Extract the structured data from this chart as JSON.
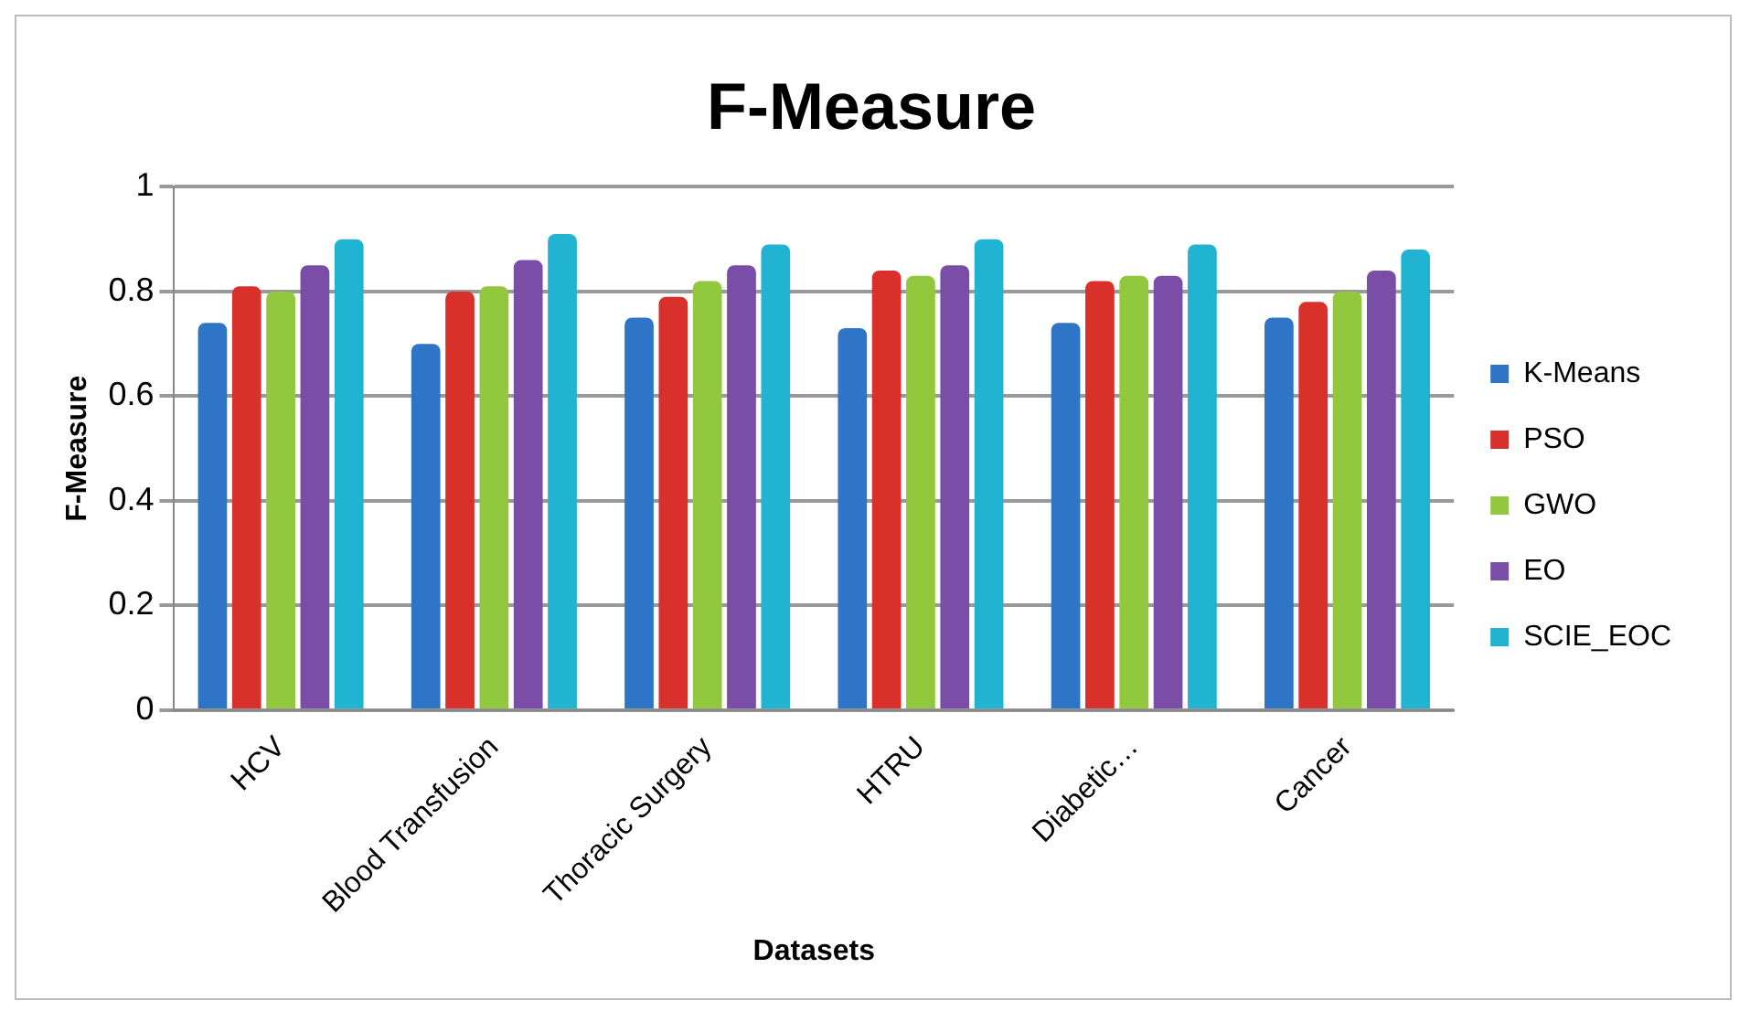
{
  "chart_data": {
    "type": "bar",
    "title": "F-Measure",
    "xlabel": "Datasets",
    "ylabel": "F-Measure",
    "categories": [
      "HCV",
      "Blood Transfusion",
      "Thoracic Surgery",
      "HTRU",
      "Diabetic…",
      "Cancer"
    ],
    "series": [
      {
        "name": "K-Means",
        "color": "#2e75c8",
        "values": [
          0.74,
          0.7,
          0.75,
          0.73,
          0.74,
          0.75
        ]
      },
      {
        "name": "PSO",
        "color": "#d9302c",
        "values": [
          0.81,
          0.8,
          0.79,
          0.84,
          0.82,
          0.78
        ]
      },
      {
        "name": "GWO",
        "color": "#92c83e",
        "values": [
          0.8,
          0.81,
          0.82,
          0.83,
          0.83,
          0.8
        ]
      },
      {
        "name": "EO",
        "color": "#7a4ea6",
        "values": [
          0.85,
          0.86,
          0.85,
          0.85,
          0.83,
          0.84
        ]
      },
      {
        "name": "SCIE_EOC",
        "color": "#21b4d2",
        "values": [
          0.9,
          0.91,
          0.89,
          0.9,
          0.89,
          0.88
        ]
      }
    ],
    "ylim": [
      0,
      1
    ],
    "yticks": [
      0,
      0.2,
      0.4,
      0.6,
      0.8,
      1
    ],
    "grid": "y",
    "legend": "right"
  }
}
